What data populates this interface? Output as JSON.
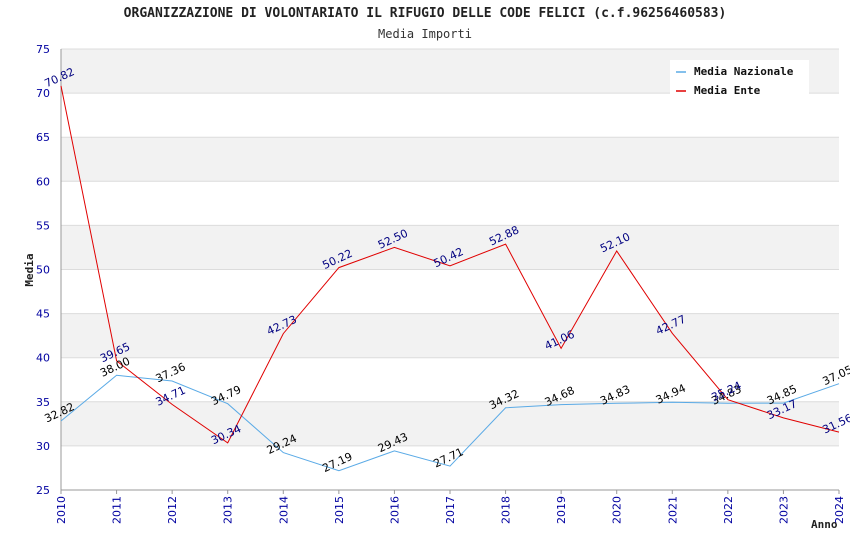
{
  "chart_data": {
    "type": "line",
    "title": "ORGANIZZAZIONE DI VOLONTARIATO IL RIFUGIO DELLE CODE FELICI (c.f.96256460583)",
    "subtitle": "Media Importi",
    "ylabel": "Media",
    "xlabel": "Anno",
    "x": [
      "2010",
      "2011",
      "2012",
      "2013",
      "2014",
      "2015",
      "2016",
      "2017",
      "2018",
      "2019",
      "2020",
      "2021",
      "2022",
      "2023",
      "2024"
    ],
    "ylim": [
      25,
      75
    ],
    "yticks": [
      25,
      30,
      35,
      40,
      45,
      50,
      55,
      60,
      65,
      70,
      75
    ],
    "grid": true,
    "legend_position": "top-right",
    "series": [
      {
        "name": "Media Nazionale",
        "color": "#5aaae6",
        "label_color": "#000000",
        "values": [
          32.82,
          38.0,
          37.36,
          34.79,
          29.24,
          27.19,
          29.43,
          27.71,
          34.32,
          34.68,
          34.83,
          34.94,
          34.83,
          34.85,
          37.05
        ],
        "labels": [
          "32.82",
          "38.00",
          "37.36",
          "34.79",
          "29.24",
          "27.19",
          "29.43",
          "27.71",
          "34.32",
          "34.68",
          "34.83",
          "34.94",
          "34.83",
          "34.85",
          "37.05"
        ]
      },
      {
        "name": "Media Ente",
        "color": "#e00000",
        "label_color": "#000080",
        "values": [
          70.82,
          39.65,
          34.71,
          30.34,
          42.73,
          50.22,
          52.5,
          50.42,
          52.88,
          41.06,
          52.1,
          42.77,
          35.24,
          33.17,
          31.56
        ],
        "labels": [
          "70.82",
          "39.65",
          "34.71",
          "30.34",
          "42.73",
          "50.22",
          "52.50",
          "50.42",
          "52.88",
          "41.06",
          "52.10",
          "42.77",
          "35.24",
          "33.17",
          "31.56"
        ]
      }
    ]
  }
}
